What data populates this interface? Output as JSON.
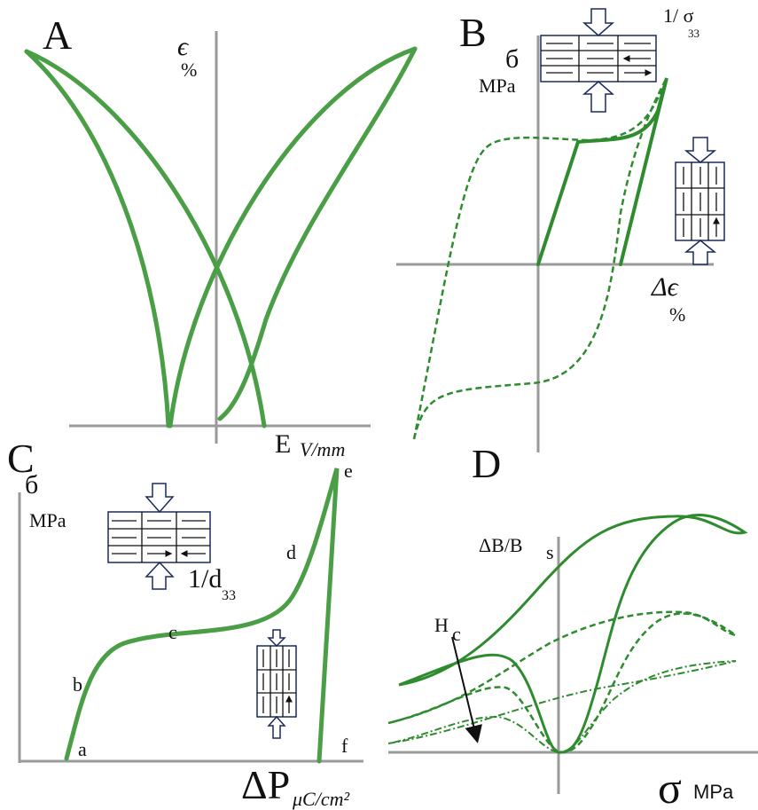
{
  "panels": {
    "a": {
      "label": "A",
      "y_axis": "ϵ",
      "y_unit": "%",
      "x_axis": "E",
      "x_unit": "V/mm"
    },
    "b": {
      "label": "B",
      "top_label": "1/ σ",
      "top_label_sub": "33",
      "y_axis": "б",
      "y_unit": "MPa",
      "x_axis": "Δϵ",
      "x_unit": "%"
    },
    "c": {
      "label": "C",
      "y_axis": "б",
      "y_unit": "MPa",
      "inset_label": "1/d",
      "inset_label_sub": "33",
      "points": [
        "a",
        "b",
        "c",
        "d",
        "e",
        "f"
      ],
      "x_axis": "ΔP",
      "x_unit": "μC/cm²"
    },
    "d": {
      "label": "D",
      "y_axis": "ΔB/B",
      "y_axis_sub": "s",
      "arrow_label": "H",
      "arrow_label_sub": "c",
      "x_axis": "σ",
      "x_unit": "MPa"
    }
  }
}
